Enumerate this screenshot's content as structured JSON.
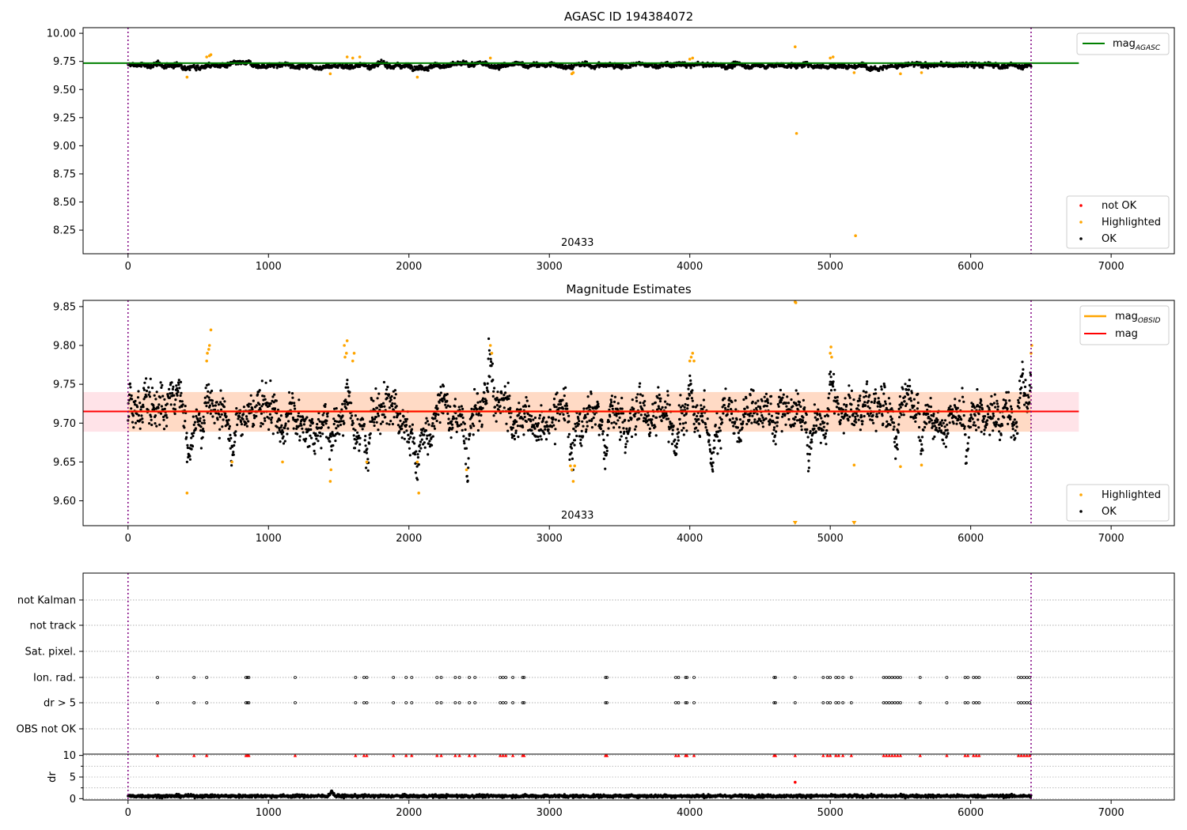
{
  "chart_data": [
    {
      "type": "scatter",
      "title": "AGASC ID 194384072",
      "xlabel": "",
      "ylabel": "",
      "xlim": [
        -320,
        7450
      ],
      "ylim": [
        8.04,
        10.05
      ],
      "xticks": [
        0,
        1000,
        2000,
        3000,
        4000,
        5000,
        6000,
        7000
      ],
      "xtick_labels": [
        "0",
        "1000",
        "2000",
        "3000",
        "4000",
        "5000",
        "6000",
        "7000"
      ],
      "yticks": [
        8.25,
        8.5,
        8.75,
        9.0,
        9.25,
        9.5,
        9.75,
        10.0
      ],
      "ytick_labels": [
        "8.25",
        "8.50",
        "8.75",
        "9.00",
        "9.25",
        "9.50",
        "9.75",
        "10.00"
      ],
      "grid": false,
      "obsid_label": "20433",
      "obsid_label_x": 3200,
      "vlines_x": [
        0,
        6430
      ],
      "hline": {
        "name": "mag_AGASC",
        "y": 9.735,
        "x_range": [
          -320,
          6770
        ],
        "color": "#008000"
      },
      "ok_series": {
        "name": "OK",
        "color": "#000000",
        "x_range": [
          0,
          6430
        ],
        "y_center": 9.715,
        "y_spread": 0.02
      },
      "highlighted_points": {
        "name": "Highlighted",
        "color": "#ffa500",
        "x": [
          420,
          560,
          580,
          590,
          1440,
          1560,
          1600,
          1650,
          2060,
          2580,
          3160,
          3170,
          4000,
          4020,
          4750,
          4760,
          5000,
          5020,
          5170,
          5180,
          5500,
          5650
        ],
        "y": [
          9.61,
          9.79,
          9.8,
          9.81,
          9.64,
          9.79,
          9.78,
          9.79,
          9.61,
          9.78,
          9.64,
          9.65,
          9.77,
          9.78,
          9.88,
          9.11,
          9.78,
          9.79,
          9.65,
          8.2,
          9.64,
          9.65
        ]
      },
      "not_ok_points": {
        "name": "not OK",
        "color": "#ff0000",
        "x": [],
        "y": []
      },
      "legends": [
        {
          "entries": [
            {
              "label": "mag",
              "sub": "AGASC",
              "kind": "line",
              "color": "#008000"
            }
          ],
          "placement": "upper right"
        },
        {
          "entries": [
            {
              "label": "not OK",
              "kind": "dot",
              "color": "#ff0000"
            },
            {
              "label": "Highlighted",
              "kind": "dot",
              "color": "#ffa500"
            },
            {
              "label": "OK",
              "kind": "dot",
              "color": "#000000"
            }
          ],
          "placement": "lower right"
        }
      ]
    },
    {
      "type": "scatter",
      "title": "Magnitude Estimates",
      "xlabel": "",
      "ylabel": "",
      "xlim": [
        -320,
        7450
      ],
      "ylim": [
        9.568,
        9.858
      ],
      "xticks": [
        0,
        1000,
        2000,
        3000,
        4000,
        5000,
        6000,
        7000
      ],
      "xtick_labels": [
        "0",
        "1000",
        "2000",
        "3000",
        "4000",
        "5000",
        "6000",
        "7000"
      ],
      "yticks": [
        9.6,
        9.65,
        9.7,
        9.75,
        9.8,
        9.85
      ],
      "ytick_labels": [
        "9.60",
        "9.65",
        "9.70",
        "9.75",
        "9.80",
        "9.85"
      ],
      "grid": false,
      "obsid_label": "20433",
      "obsid_label_x": 3200,
      "vlines_x": [
        0,
        6430
      ],
      "hline": {
        "name": "mag",
        "y": 9.715,
        "x_range": [
          -320,
          6770
        ],
        "color": "#ff0000"
      },
      "band": {
        "y_low": 9.689,
        "y_high": 9.74,
        "x_range": [
          -320,
          6770
        ],
        "color": "#ffc0cb"
      },
      "obsid_line": {
        "name": "mag_OBSID",
        "y": 9.715,
        "x_range": [
          0,
          6430
        ],
        "color": "#ffa500"
      },
      "ok_series": {
        "name": "OK",
        "color": "#000000",
        "x_range": [
          0,
          6430
        ],
        "y_center": 9.715,
        "y_spread": 0.025
      },
      "dip_features": [
        {
          "x": 430,
          "depth": 0.055
        },
        {
          "x": 740,
          "depth": 0.05
        },
        {
          "x": 1100,
          "depth": 0.05
        },
        {
          "x": 1440,
          "depth": 0.055
        },
        {
          "x": 1700,
          "depth": 0.055
        },
        {
          "x": 2060,
          "depth": 0.05
        },
        {
          "x": 2410,
          "depth": 0.055
        },
        {
          "x": 3160,
          "depth": 0.06
        },
        {
          "x": 3400,
          "depth": 0.05
        },
        {
          "x": 3900,
          "depth": 0.05
        },
        {
          "x": 4150,
          "depth": 0.05
        },
        {
          "x": 4600,
          "depth": 0.05
        },
        {
          "x": 4850,
          "depth": 0.05
        },
        {
          "x": 5470,
          "depth": 0.055
        },
        {
          "x": 5650,
          "depth": 0.05
        },
        {
          "x": 5830,
          "depth": 0.05
        },
        {
          "x": 5970,
          "depth": 0.05
        },
        {
          "x": 6320,
          "depth": 0.05
        }
      ],
      "bump_features": [
        {
          "x": 570,
          "height": 0.07
        },
        {
          "x": 1560,
          "height": 0.06
        },
        {
          "x": 2580,
          "height": 0.07
        },
        {
          "x": 4000,
          "height": 0.06
        },
        {
          "x": 5000,
          "height": 0.06
        },
        {
          "x": 6430,
          "height": 0.06
        }
      ],
      "highlighted_points": {
        "name": "Highlighted",
        "color": "#ffa500",
        "x": [
          420,
          560,
          565,
          575,
          580,
          590,
          740,
          1100,
          1440,
          1445,
          1540,
          1545,
          1555,
          1560,
          1600,
          1610,
          1700,
          2060,
          2070,
          2410,
          2580,
          2590,
          3150,
          3160,
          3170,
          3180,
          4000,
          4010,
          4020,
          4030,
          4750,
          4755,
          5000,
          5005,
          5010,
          5170,
          5500,
          5650,
          6430,
          6435
        ],
        "y": [
          9.61,
          9.78,
          9.79,
          9.795,
          9.8,
          9.82,
          9.65,
          9.65,
          9.625,
          9.64,
          9.8,
          9.785,
          9.79,
          9.806,
          9.78,
          9.79,
          9.65,
          9.65,
          9.61,
          9.64,
          9.8,
          9.79,
          9.645,
          9.64,
          9.625,
          9.645,
          9.78,
          9.785,
          9.79,
          9.78,
          9.856,
          9.855,
          9.79,
          9.798,
          9.785,
          9.646,
          9.644,
          9.646,
          9.79,
          9.8
        ]
      },
      "clipped_points": {
        "color": "#ffa500",
        "x": [
          4750,
          5170
        ],
        "edge": "bottom"
      },
      "legends": [
        {
          "entries": [
            {
              "label": "mag",
              "sub": "OBSID",
              "kind": "line",
              "color": "#ffa500"
            },
            {
              "label": "mag",
              "kind": "line",
              "color": "#ff0000"
            }
          ],
          "placement": "upper right"
        },
        {
          "entries": [
            {
              "label": "Highlighted",
              "kind": "dot",
              "color": "#ffa500"
            },
            {
              "label": "OK",
              "kind": "dot",
              "color": "#000000"
            }
          ],
          "placement": "lower right"
        }
      ]
    },
    {
      "type": "scatter",
      "title": "",
      "xlabel": "",
      "ylabel": "",
      "xlim": [
        -320,
        7450
      ],
      "categories": [
        "not Kalman",
        "not track",
        "Sat. pixel.",
        "Ion. rad.",
        "dr > 5",
        "OBS not OK"
      ],
      "grid": true,
      "vlines_x": [
        0,
        6430
      ],
      "flag_events": {
        "Ion. rad.": [
          210,
          470,
          560,
          840,
          850,
          860,
          1190,
          1620,
          1680,
          1700,
          1890,
          1980,
          2020,
          2200,
          2230,
          2330,
          2360,
          2430,
          2470,
          2650,
          2670,
          2690,
          2740,
          2810,
          2820,
          3400,
          3410,
          3900,
          3920,
          3970,
          3980,
          4030,
          4600,
          4610,
          4750,
          4950,
          4980,
          5000,
          5040,
          5060,
          5090,
          5150,
          5380,
          5400,
          5420,
          5440,
          5460,
          5480,
          5500,
          5640,
          5830,
          5960,
          5980,
          6020,
          6040,
          6060,
          6340,
          6360,
          6380,
          6400,
          6420
        ],
        "dr > 5": [
          210,
          470,
          560,
          840,
          850,
          860,
          1190,
          1620,
          1680,
          1700,
          1890,
          1980,
          2020,
          2200,
          2230,
          2330,
          2360,
          2430,
          2470,
          2650,
          2670,
          2690,
          2740,
          2810,
          2820,
          3400,
          3410,
          3900,
          3920,
          3970,
          3980,
          4030,
          4600,
          4610,
          4750,
          4950,
          4980,
          5000,
          5040,
          5060,
          5090,
          5150,
          5380,
          5400,
          5420,
          5440,
          5460,
          5480,
          5500,
          5640,
          5830,
          5960,
          5980,
          6020,
          6040,
          6060,
          6340,
          6360,
          6380,
          6400,
          6420
        ]
      }
    },
    {
      "type": "scatter",
      "title": "",
      "xlabel": "",
      "ylabel": "dr",
      "xlim": [
        -320,
        7450
      ],
      "ylim": [
        -0.3,
        10.3
      ],
      "xticks": [
        0,
        1000,
        2000,
        3000,
        4000,
        5000,
        6000,
        7000
      ],
      "xtick_labels": [
        "0",
        "1000",
        "2000",
        "3000",
        "4000",
        "5000",
        "6000",
        "7000"
      ],
      "yticks": [
        0,
        5,
        10
      ],
      "ytick_labels": [
        "0",
        "5",
        "10"
      ],
      "grid": true,
      "vlines_x": [
        0,
        6430
      ],
      "dr_series": {
        "color": "#000000",
        "x_range": [
          0,
          6430
        ],
        "y_center": 0.6,
        "y_spread": 0.35
      },
      "dr_spike": {
        "x": 1450,
        "y": 1.7
      },
      "dr_capped": {
        "color": "#ff0000",
        "y": 10,
        "same_as": "dr > 5"
      },
      "dr_outlier": {
        "x": 4750,
        "y": 3.8,
        "color": "#ff0000"
      }
    }
  ]
}
